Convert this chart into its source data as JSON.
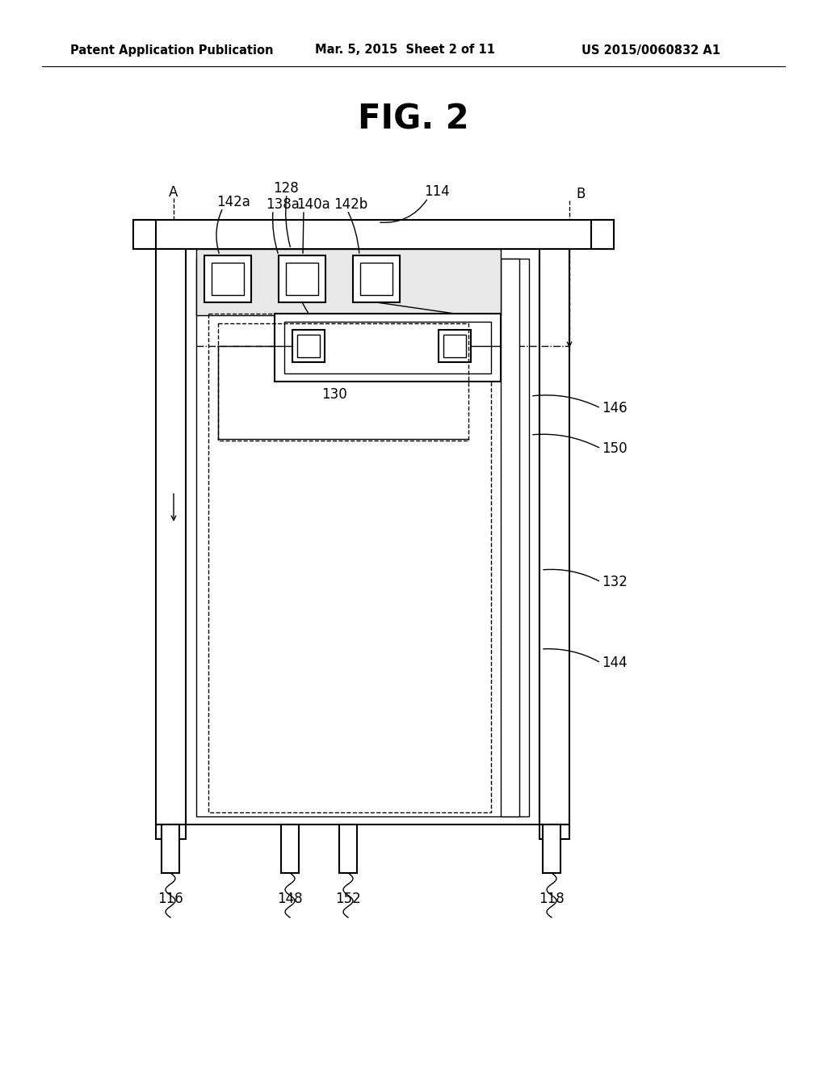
{
  "title": "FIG. 2",
  "header_left": "Patent Application Publication",
  "header_mid": "Mar. 5, 2015  Sheet 2 of 11",
  "header_right": "US 2015/0060832 A1",
  "bg_color": "#ffffff",
  "line_color": "#000000",
  "fig_width": 10.24,
  "fig_height": 13.2
}
